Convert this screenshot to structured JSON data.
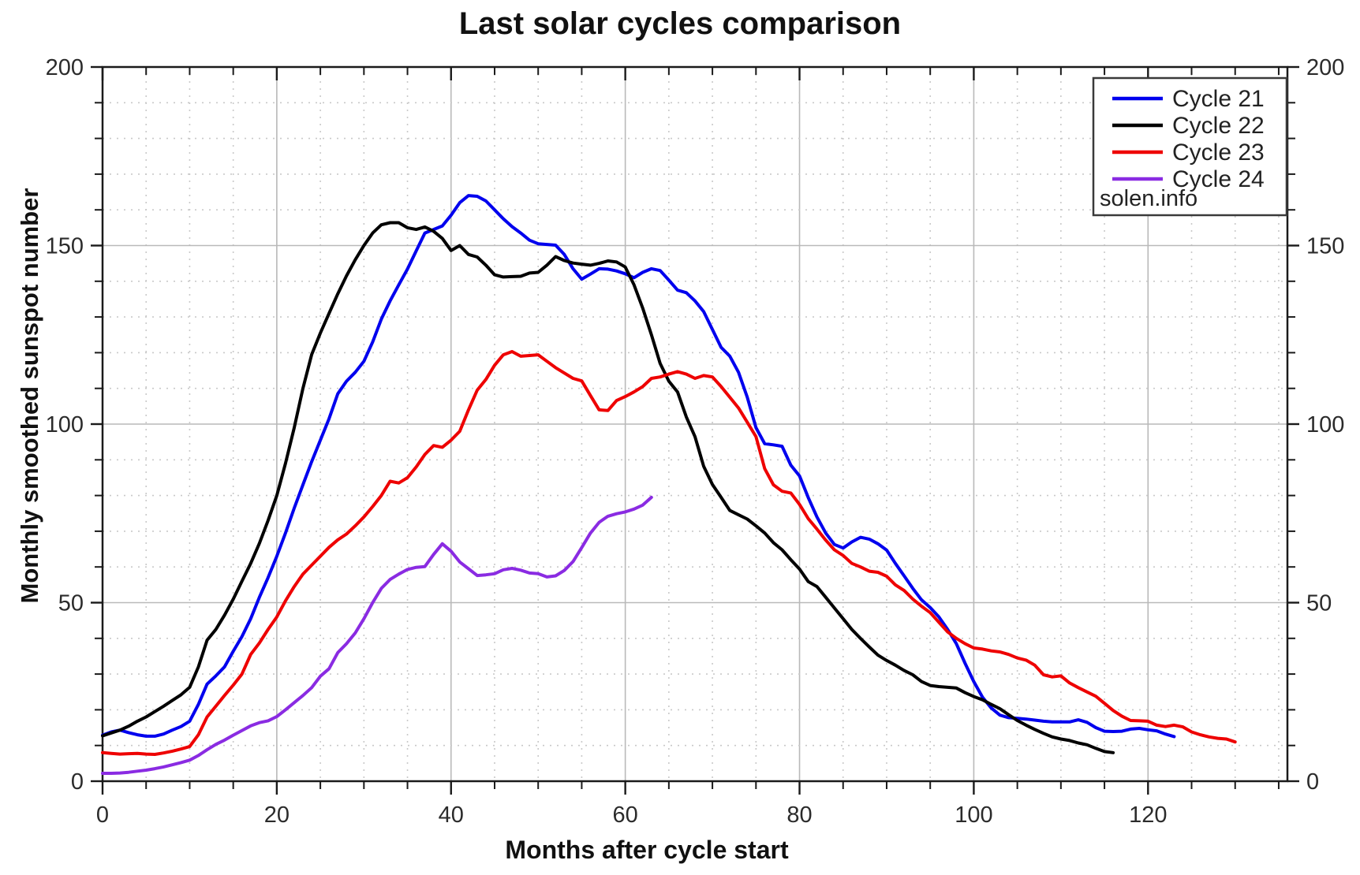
{
  "title": "Last solar cycles comparison",
  "axes": {
    "xlabel": "Months after cycle start",
    "ylabel": "Monthly smoothed sunspot number",
    "xlim": [
      0,
      136
    ],
    "ylim": [
      0,
      200
    ],
    "x_major_step": 20,
    "x_minor_step": 5,
    "y_major_step": 50,
    "y_minor_step": 10,
    "x_tick_labels": [
      "0",
      "20",
      "40",
      "60",
      "80",
      "100",
      "120"
    ],
    "y_tick_labels_left": [
      "0",
      "50",
      "100",
      "150",
      "200"
    ],
    "y_tick_labels_right": [
      "0",
      "50",
      "100",
      "150",
      "200"
    ]
  },
  "legend": {
    "note": "solen.info",
    "entries": [
      {
        "label": "Cycle 21",
        "color": "#0000ee"
      },
      {
        "label": "Cycle 22",
        "color": "#000000"
      },
      {
        "label": "Cycle 23",
        "color": "#ee0000"
      },
      {
        "label": "Cycle 24",
        "color": "#8a2be2"
      }
    ]
  },
  "chart_data": {
    "type": "line",
    "title": "Last solar cycles comparison",
    "xlabel": "Months after cycle start",
    "ylabel": "Monthly smoothed sunspot number",
    "xlim": [
      0,
      136
    ],
    "ylim": [
      0,
      200
    ],
    "grid": "major-solid, minor-dotted",
    "legend_position": "top-right",
    "x_unit": "months, one point per month starting at month 0",
    "series": [
      {
        "name": "Cycle 21",
        "color": "#0000ee",
        "values": [
          12.9,
          13.8,
          14.3,
          13.6,
          13.0,
          12.6,
          12.6,
          13.2,
          14.3,
          15.3,
          16.8,
          21.5,
          27.2,
          29.5,
          32.0,
          36.4,
          40.5,
          45.5,
          51.5,
          57.0,
          63.0,
          69.5,
          76.5,
          83.0,
          89.5,
          95.5,
          101.5,
          108.5,
          112.0,
          114.5,
          117.6,
          123.0,
          129.4,
          134.5,
          139.0,
          143.4,
          148.5,
          153.5,
          154.5,
          155.5,
          158.5,
          162.0,
          164.0,
          163.8,
          162.5,
          160.0,
          157.5,
          155.3,
          153.5,
          151.5,
          150.5,
          150.3,
          150.1,
          147.5,
          143.5,
          140.6,
          142.0,
          143.5,
          143.4,
          142.9,
          142.1,
          141.0,
          142.5,
          143.5,
          143.0,
          140.3,
          137.5,
          136.8,
          134.5,
          131.5,
          126.5,
          121.5,
          119.0,
          114.5,
          107.5,
          99.0,
          94.5,
          94.2,
          93.8,
          88.5,
          85.5,
          79.4,
          74.0,
          69.5,
          66.3,
          65.3,
          67.0,
          68.3,
          67.8,
          66.5,
          64.7,
          61.0,
          57.5,
          54.0,
          50.8,
          48.6,
          46.0,
          42.5,
          38.5,
          33.0,
          27.9,
          23.5,
          20.5,
          18.5,
          17.8,
          17.6,
          17.4,
          17.1,
          16.8,
          16.6,
          16.6,
          16.6,
          17.2,
          16.5,
          15.0,
          14.0,
          13.9,
          14.0,
          14.6,
          14.8,
          14.4,
          14.1,
          13.2,
          12.5
        ]
      },
      {
        "name": "Cycle 22",
        "color": "#000000",
        "values": [
          12.7,
          13.5,
          14.3,
          15.4,
          16.8,
          18.0,
          19.5,
          21.0,
          22.6,
          24.2,
          26.3,
          32.0,
          39.5,
          42.5,
          46.5,
          51.0,
          56.0,
          61.0,
          66.6,
          73.0,
          80.0,
          89.0,
          99.0,
          110.0,
          119.5,
          125.5,
          131.0,
          136.5,
          141.5,
          146.0,
          150.0,
          153.5,
          155.8,
          156.4,
          156.4,
          155.0,
          154.5,
          155.2,
          154.0,
          152.0,
          148.6,
          150.0,
          147.5,
          146.8,
          144.5,
          141.8,
          141.2,
          141.3,
          141.4,
          142.3,
          142.5,
          144.5,
          146.9,
          145.8,
          145.1,
          144.8,
          144.5,
          145.0,
          145.7,
          145.4,
          144.0,
          139.0,
          132.5,
          125.0,
          117.0,
          112.0,
          109.0,
          102.0,
          96.5,
          88.2,
          83.1,
          79.5,
          75.8,
          74.6,
          73.4,
          71.5,
          69.5,
          66.8,
          64.8,
          62.0,
          59.4,
          55.9,
          54.5,
          51.5,
          48.5,
          45.5,
          42.5,
          40.0,
          37.6,
          35.3,
          33.8,
          32.5,
          31.0,
          29.8,
          27.9,
          26.8,
          26.5,
          26.3,
          26.1,
          24.8,
          23.7,
          22.8,
          21.5,
          20.3,
          18.6,
          17.0,
          15.7,
          14.5,
          13.4,
          12.4,
          11.8,
          11.4,
          10.7,
          10.2,
          9.2,
          8.3,
          8.0
        ]
      },
      {
        "name": "Cycle 23",
        "color": "#ee0000",
        "values": [
          8.0,
          7.8,
          7.6,
          7.7,
          7.8,
          7.6,
          7.5,
          7.9,
          8.4,
          9.0,
          9.7,
          13.0,
          18.0,
          21.0,
          24.0,
          26.9,
          30.0,
          35.5,
          38.7,
          42.5,
          46.0,
          50.5,
          54.5,
          58.0,
          60.5,
          63.0,
          65.5,
          67.6,
          69.2,
          71.5,
          74.0,
          76.9,
          80.0,
          84.0,
          83.5,
          85.0,
          88.0,
          91.5,
          94.0,
          93.5,
          95.5,
          98.0,
          104.0,
          109.5,
          112.5,
          116.5,
          119.4,
          120.3,
          119.0,
          119.2,
          119.4,
          117.6,
          115.8,
          114.3,
          112.8,
          112.1,
          108.0,
          104.0,
          103.8,
          106.6,
          107.7,
          109.0,
          110.5,
          112.8,
          113.2,
          114.0,
          114.7,
          114.0,
          112.8,
          113.6,
          113.2,
          110.5,
          107.5,
          104.5,
          100.5,
          96.5,
          87.5,
          83.0,
          81.2,
          80.7,
          77.5,
          73.5,
          70.6,
          67.5,
          64.8,
          63.2,
          61.0,
          60.0,
          58.8,
          58.5,
          57.4,
          55.0,
          53.4,
          51.0,
          49.0,
          47.2,
          44.5,
          41.8,
          40.0,
          38.5,
          37.3,
          37.0,
          36.5,
          36.2,
          35.5,
          34.5,
          33.9,
          32.5,
          29.8,
          29.2,
          29.5,
          27.5,
          26.2,
          25.0,
          23.8,
          21.8,
          19.8,
          18.2,
          17.0,
          16.9,
          16.8,
          15.7,
          15.3,
          15.7,
          15.2,
          13.8,
          13.0,
          12.4,
          12.0,
          11.8,
          11.0
        ]
      },
      {
        "name": "Cycle 24",
        "color": "#8a2be2",
        "values": [
          2.2,
          2.2,
          2.3,
          2.5,
          2.8,
          3.1,
          3.5,
          4.0,
          4.6,
          5.2,
          5.9,
          7.2,
          8.8,
          10.3,
          11.5,
          12.9,
          14.2,
          15.5,
          16.4,
          16.9,
          18.1,
          20.0,
          22.0,
          24.0,
          26.2,
          29.4,
          31.5,
          36.0,
          38.5,
          41.5,
          45.5,
          50.0,
          54.0,
          56.5,
          58.0,
          59.3,
          59.9,
          60.1,
          63.5,
          66.5,
          64.4,
          61.4,
          59.5,
          57.6,
          57.8,
          58.1,
          59.2,
          59.6,
          59.1,
          58.3,
          58.1,
          57.2,
          57.5,
          59.0,
          61.5,
          65.4,
          69.5,
          72.5,
          74.2,
          74.9,
          75.4,
          76.2,
          77.3,
          79.5
        ]
      }
    ]
  }
}
